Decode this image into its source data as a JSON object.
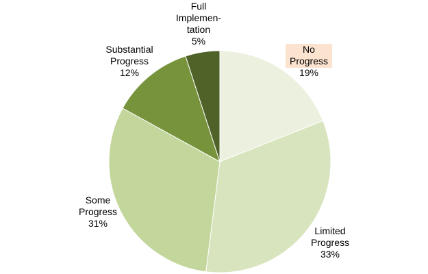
{
  "chart_data": {
    "type": "pie",
    "title": "",
    "start": "12 o'clock, clockwise",
    "slices": [
      {
        "label": [
          "No",
          "Progress"
        ],
        "value": 19,
        "value_label": "19%",
        "color": "#ebf1de",
        "label_highlight": "#fbe3cf"
      },
      {
        "label": [
          "Limited",
          "Progress"
        ],
        "value": 33,
        "value_label": "33%",
        "color": "#d7e4bd"
      },
      {
        "label": [
          "Some",
          "Progress"
        ],
        "value": 31,
        "value_label": "31%",
        "color": "#c3d69b"
      },
      {
        "label": [
          "Substantial",
          "Progress"
        ],
        "value": 12,
        "value_label": "12%",
        "color": "#77933c"
      },
      {
        "label": [
          "Full",
          "Implemen-",
          "tation"
        ],
        "value": 5,
        "value_label": "5%",
        "color": "#4f6228"
      }
    ]
  }
}
